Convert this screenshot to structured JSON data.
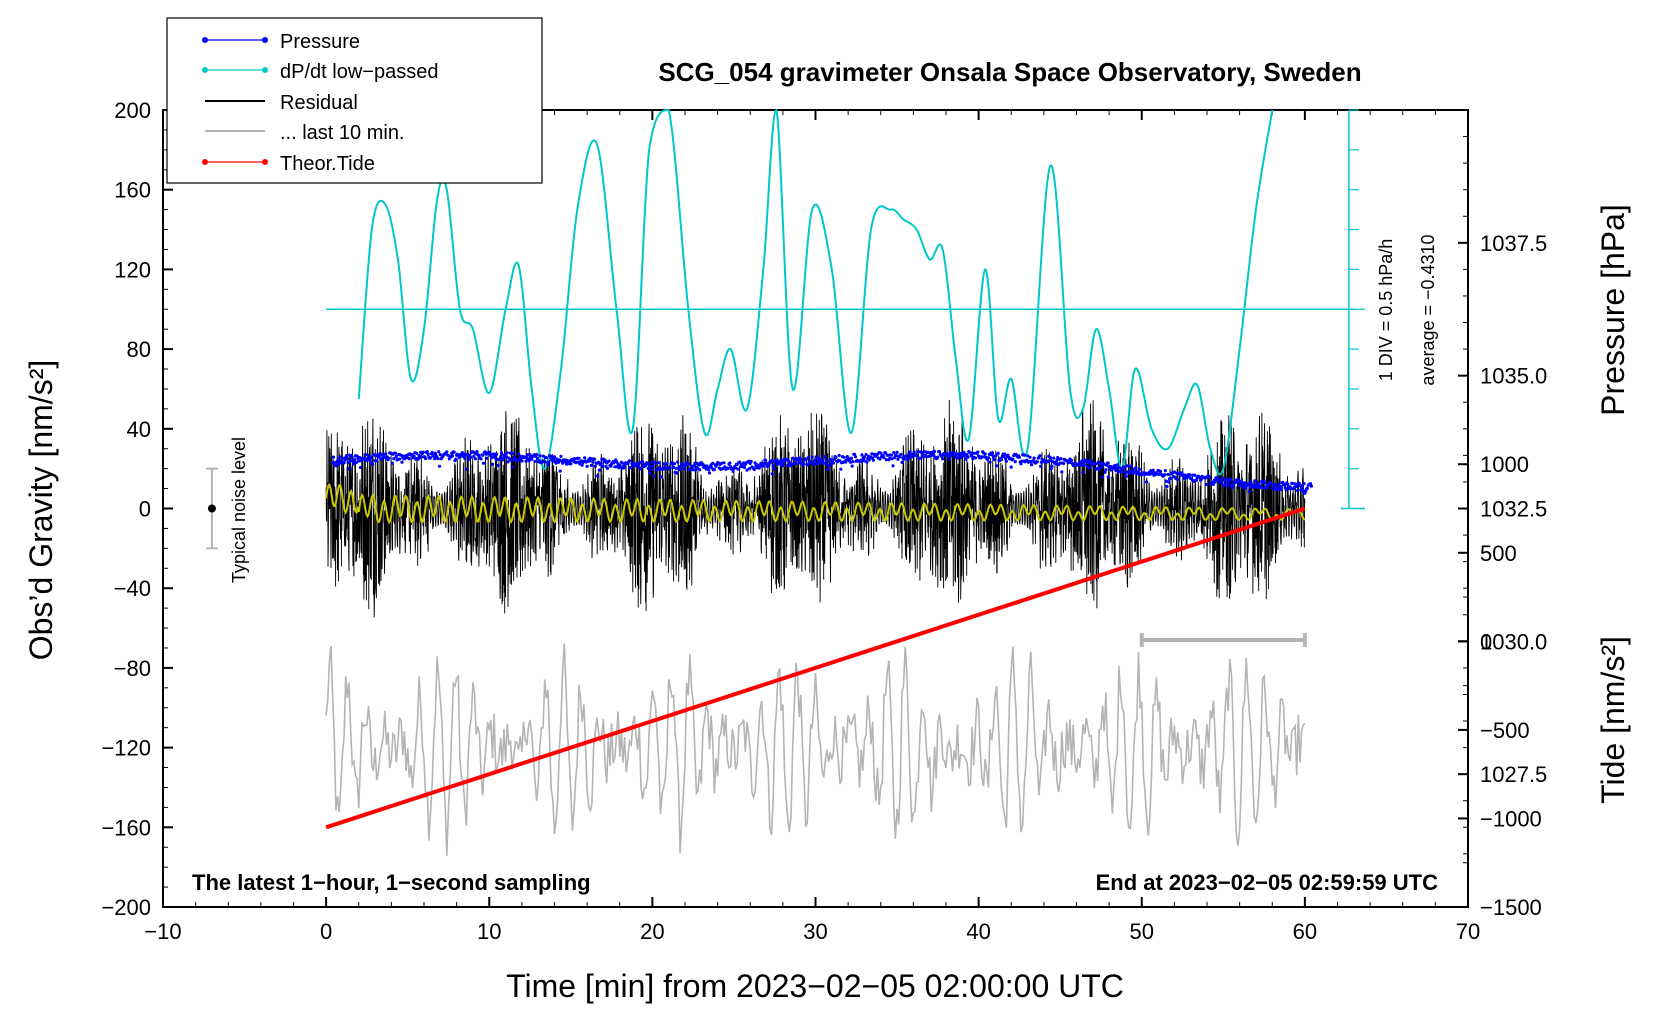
{
  "chart_data": {
    "type": "line",
    "title": "SCG_054 gravimeter Onsala Space Observatory, Sweden",
    "xlabel": "Time [min] from 2023−02−05 02:00:00 UTC",
    "ylabel_left": "Obs’d Gravity [nm/s²]",
    "ylabel_right_top": "Pressure [hPa]",
    "ylabel_right_bottom": "Tide [nm/s²]",
    "xlim": [
      -10,
      70
    ],
    "ylim": [
      -200,
      200
    ],
    "pressure_lim": [
      1025.0,
      1040.0
    ],
    "tide_lim": [
      -1500,
      3000
    ],
    "x_ticks": [
      "−10",
      "0",
      "10",
      "20",
      "30",
      "40",
      "50",
      "60",
      "70"
    ],
    "x_tick_values": [
      -10,
      0,
      10,
      20,
      30,
      40,
      50,
      60,
      70
    ],
    "y_ticks": [
      "200",
      "160",
      "120",
      "80",
      "40",
      "0",
      "−40",
      "−80",
      "−120",
      "−160",
      "−200"
    ],
    "y_tick_values": [
      200,
      160,
      120,
      80,
      40,
      0,
      -40,
      -80,
      -120,
      -160,
      -200
    ],
    "pressure_ticks": [
      "1037.5",
      "1035.0",
      "1032.5",
      "1030.0",
      "1027.5"
    ],
    "pressure_tick_values": [
      1037.5,
      1035.0,
      1032.5,
      1030.0,
      1027.5
    ],
    "tide_ticks": [
      "1000",
      "500",
      "0",
      "−500",
      "−1000",
      "−1500"
    ],
    "tide_tick_values": [
      1000,
      500,
      0,
      -500,
      -1000,
      -1500
    ],
    "legend": [
      "Pressure",
      "dP/dt low−passed",
      "Residual",
      "... last 10 min.",
      "Theor.Tide"
    ],
    "legend_location": "top-left",
    "dpdt_scale_text": "1 DIV = 0.5 hPa/h",
    "dpdt_average_text": "average = −0.4310",
    "noise_label": "Typical noise level",
    "noise_bar": [
      -20,
      20
    ],
    "footer_left": "The latest 1−hour, 1−second sampling",
    "footer_right": "End at 2023−02−05 02:59:59 UTC",
    "last10_range": [
      50,
      60
    ],
    "series": [
      {
        "name": "Pressure",
        "color": "#0000ff",
        "unit": "hPa",
        "x": [
          0,
          5,
          10,
          15,
          20,
          25,
          30,
          35,
          40,
          45,
          50,
          55,
          60
        ],
        "y": [
          1033.4,
          1033.5,
          1033.5,
          1033.4,
          1033.3,
          1033.3,
          1033.4,
          1033.5,
          1033.5,
          1033.4,
          1033.2,
          1033.0,
          1032.9
        ]
      },
      {
        "name": "dP/dt low−passed",
        "color": "#00c8c8",
        "unit": "nm/s² equivalent",
        "baseline": 100,
        "x": [
          2,
          2.8,
          3.6,
          4.4,
          5.2,
          6.0,
          6.8,
          7.4,
          8.2,
          9.0,
          10.0,
          11.0,
          11.8,
          12.6,
          13.4,
          14.4,
          15.4,
          16.6,
          17.8,
          18.8,
          19.8,
          21.0,
          22.2,
          23.2,
          24.0,
          24.8,
          25.8,
          26.8,
          27.6,
          28.6,
          29.8,
          31.0,
          32.2,
          33.4,
          34.6,
          35.4,
          36.2,
          37.0,
          37.8,
          38.6,
          39.4,
          40.4,
          41.2,
          42.0,
          43.0,
          44.4,
          45.6,
          46.4,
          47.2,
          48.0,
          48.8,
          49.6,
          50.6,
          51.6,
          52.6,
          53.4,
          54.2,
          55.0,
          56.0,
          57.0,
          58.0
        ],
        "y": [
          55,
          140,
          153,
          125,
          65,
          90,
          155,
          160,
          100,
          90,
          58,
          100,
          122,
          60,
          20,
          70,
          150,
          183,
          100,
          40,
          180,
          200,
          100,
          38,
          60,
          80,
          50,
          120,
          200,
          60,
          150,
          120,
          38,
          140,
          150,
          145,
          140,
          125,
          130,
          75,
          35,
          120,
          45,
          65,
          30,
          172,
          60,
          50,
          90,
          60,
          20,
          70,
          40,
          30,
          50,
          62,
          30,
          20,
          80,
          150,
          200
        ]
      },
      {
        "name": "Residual",
        "color": "#000000",
        "unit": "nm/s²",
        "x": [
          0,
          60
        ],
        "y": [
          0,
          0
        ],
        "envelope": [
          -50,
          50
        ]
      },
      {
        "name": "... last 10 min.",
        "color": "#b4b4b4",
        "unit": "nm/s² offset",
        "x": [
          0,
          60
        ],
        "y": [
          -120,
          -120
        ],
        "envelope": [
          -40,
          40
        ]
      },
      {
        "name": "Theor.Tide",
        "color": "#ff0000",
        "unit": "nm/s²",
        "x": [
          0,
          60
        ],
        "y": [
          -160,
          0
        ]
      }
    ]
  }
}
